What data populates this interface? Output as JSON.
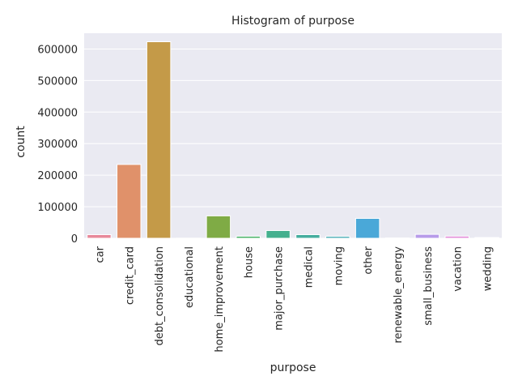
{
  "chart_data": {
    "type": "bar",
    "title": "Histogram of purpose",
    "xlabel": "purpose",
    "ylabel": "count",
    "ylim": [
      0,
      650000
    ],
    "yticks": [
      0,
      100000,
      200000,
      300000,
      400000,
      500000,
      600000
    ],
    "ytick_labels": [
      "0",
      "100000",
      "200000",
      "300000",
      "400000",
      "500000",
      "600000"
    ],
    "grid": true,
    "categories": [
      "car",
      "credit_card",
      "debt_consolidation",
      "educational",
      "home_improvement",
      "house",
      "major_purchase",
      "medical",
      "moving",
      "other",
      "renewable_energy",
      "small_business",
      "vacation",
      "wedding"
    ],
    "values": [
      11500,
      234000,
      623000,
      400,
      71000,
      6500,
      24500,
      11500,
      6000,
      63000,
      900,
      12500,
      6800,
      2300
    ],
    "colors": [
      "#e8889a",
      "#e0916a",
      "#c49a48",
      "#a6a24a",
      "#7fab45",
      "#4bb36a",
      "#44b08e",
      "#45ad9e",
      "#44abb3",
      "#4aa8d8",
      "#8aa2e8",
      "#b79be9",
      "#e38fda",
      "#e68cb6"
    ],
    "background": "#eaeaf2",
    "grid_color": "#ffffff"
  }
}
